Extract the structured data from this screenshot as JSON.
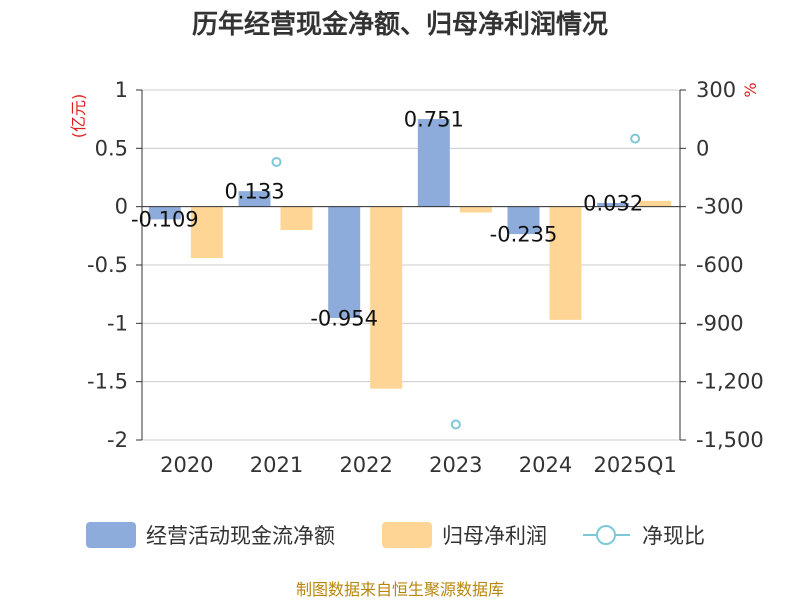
{
  "chart_data": {
    "type": "bar",
    "title": "历年经营现金净额、归母净利润情况",
    "categories": [
      "2020",
      "2021",
      "2022",
      "2023",
      "2024",
      "2025Q1"
    ],
    "left_axis": {
      "unit_label": "(亿元)",
      "ylim": [
        -2,
        1
      ],
      "ticks": [
        1,
        0.5,
        0,
        -0.5,
        -1,
        -1.5,
        -2
      ],
      "tick_labels": [
        "1",
        "0.5",
        "0",
        "-0.5",
        "-1",
        "-1.5",
        "-2"
      ]
    },
    "right_axis": {
      "unit_label": "%",
      "ylim": [
        -1500,
        300
      ],
      "ticks": [
        300,
        0,
        -300,
        -600,
        -900,
        -1200,
        -1500
      ],
      "tick_labels": [
        "300",
        "0",
        "-300",
        "-600",
        "-900",
        "-1,200",
        "-1,500"
      ]
    },
    "series": [
      {
        "name": "经营活动现金流净额",
        "type": "bar",
        "axis": "left",
        "color": "#8eacdb",
        "values": [
          -0.109,
          0.133,
          -0.954,
          0.751,
          -0.235,
          0.032
        ],
        "labels": [
          "-0.109",
          "0.133",
          "-0.954",
          "0.751",
          "-0.235",
          "0.032"
        ]
      },
      {
        "name": "归母净利润",
        "type": "bar",
        "axis": "left",
        "color": "#ffd596",
        "values": [
          -0.44,
          -0.2,
          -1.56,
          -0.05,
          -0.97,
          0.05
        ]
      },
      {
        "name": "净现比",
        "type": "scatter",
        "axis": "right",
        "color": "#7ec8d8",
        "values": [
          null,
          -70,
          null,
          -1420,
          null,
          50
        ]
      }
    ],
    "grid": true,
    "legend_position": "bottom"
  },
  "footer": {
    "source": "制图数据来自恒生聚源数据库"
  }
}
